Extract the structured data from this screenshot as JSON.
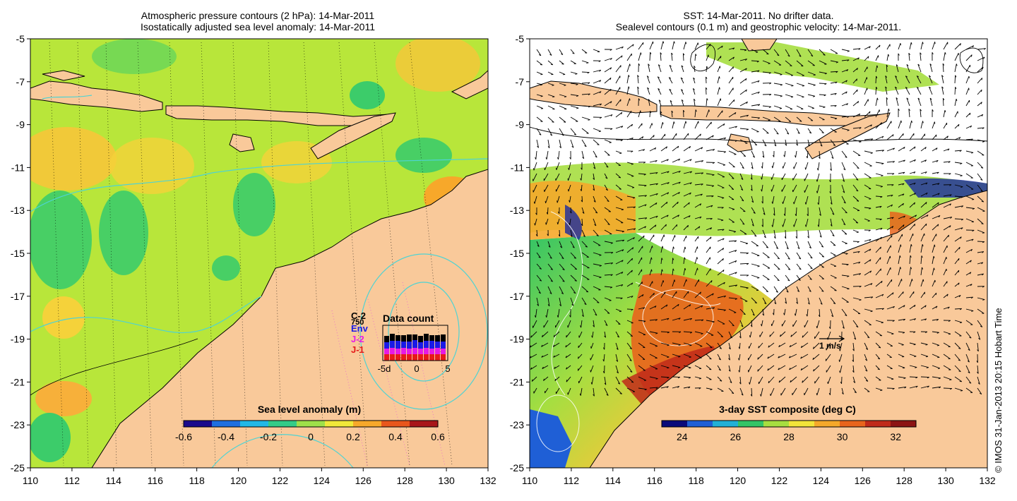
{
  "left_panel": {
    "title_line1": "Atmospheric pressure contours (2 hPa): 14-Mar-2011",
    "title_line2": "Isostatically adjusted sea level anomaly: 14-Mar-2011",
    "colorbar": {
      "title": "Sea level anomaly (m)",
      "ticks": [
        "-0.6",
        "-0.4",
        "-0.2",
        "0",
        "0.2",
        "0.4",
        "0.6"
      ],
      "colors": [
        "#1a0a8c",
        "#1f6fe0",
        "#22b8e6",
        "#33cc88",
        "#9ee04a",
        "#f0e83a",
        "#f7a82a",
        "#e8561c",
        "#a8161a"
      ]
    },
    "inset": {
      "title": "Data count",
      "sat_labels": [
        "C-2",
        "750",
        "Env",
        "J-2",
        "J-1"
      ],
      "sat_colors": [
        "#000000",
        "#000000",
        "#1a1ae6",
        "#e61ae6",
        "#e61a1a"
      ],
      "axis_labels": [
        "-5d",
        "0",
        "5"
      ]
    }
  },
  "right_panel": {
    "title_line1": "SST: 14-Mar-2011. No drifter data.",
    "title_line2": "Sealevel contours (0.1 m) and geostrophic velocity: 14-Mar-2011.",
    "colorbar": {
      "title": "3-day SST composite (deg C)",
      "ticks": [
        "24",
        "26",
        "28",
        "30",
        "32"
      ],
      "colors": [
        "#0a0a7a",
        "#1f5fd6",
        "#22b0d6",
        "#33c466",
        "#a6de40",
        "#f2e43a",
        "#f5a82a",
        "#e8641c",
        "#c02a1a",
        "#8c1414"
      ]
    },
    "velocity_scale_label": "1 m/s"
  },
  "axes": {
    "x_ticks": [
      "110",
      "112",
      "114",
      "116",
      "118",
      "120",
      "122",
      "124",
      "126",
      "128",
      "130",
      "132"
    ],
    "y_ticks": [
      "-5",
      "-7",
      "-9",
      "-11",
      "-13",
      "-15",
      "-17",
      "-19",
      "-21",
      "-23",
      "-25"
    ],
    "lon_range": [
      110,
      132
    ],
    "lat_range": [
      -25,
      -5
    ]
  },
  "side_credit": "© IMOS 31-Jan-2013 20:15 Hobart Time",
  "colors": {
    "land": "#f9c99a",
    "ocean_mid": "#b8e63a",
    "no_data": "#ffffff",
    "contour": "#4fd3d3"
  }
}
